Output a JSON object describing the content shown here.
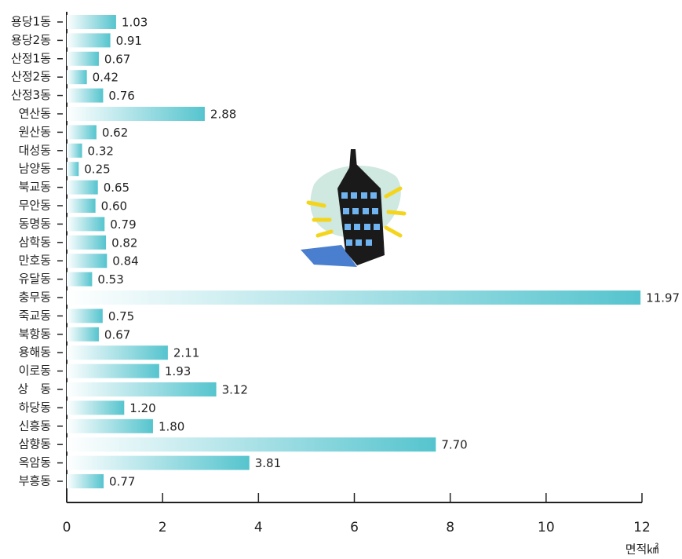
{
  "chart_data": {
    "type": "bar",
    "orientation": "horizontal",
    "categories": [
      "용당1동",
      "용당2동",
      "산정1동",
      "산정2동",
      "산정3동",
      "연산동",
      "원산동",
      "대성동",
      "남양동",
      "북교동",
      "무안동",
      "동명동",
      "삼학동",
      "만호동",
      "유달동",
      "충무동",
      "죽교동",
      "북항동",
      "용해동",
      "이로동",
      "상　동",
      "하당동",
      "신흥동",
      "삼향동",
      "옥암동",
      "부흥동"
    ],
    "values": [
      1.03,
      0.91,
      0.67,
      0.42,
      0.76,
      2.88,
      0.62,
      0.32,
      0.25,
      0.65,
      0.6,
      0.79,
      0.82,
      0.84,
      0.53,
      11.97,
      0.75,
      0.67,
      2.11,
      1.93,
      3.12,
      1.2,
      1.8,
      7.7,
      3.81,
      0.77
    ],
    "value_labels": [
      "1.03",
      "0.91",
      "0.67",
      "0.42",
      "0.76",
      "2.88",
      "0.62",
      "0.32",
      "0.25",
      "0.65",
      "0.60",
      "0.79",
      "0.82",
      "0.84",
      "0.53",
      "11.97",
      "0.75",
      "0.67",
      "2.11",
      "1.93",
      "3.12",
      "1.20",
      "1.80",
      "7.70",
      "3.81",
      "0.77"
    ],
    "color": "#55c4ce",
    "xlabel": "면적㎢",
    "xlim": [
      0,
      12
    ],
    "xticks": [
      0,
      2,
      4,
      6,
      8,
      10,
      12
    ]
  }
}
